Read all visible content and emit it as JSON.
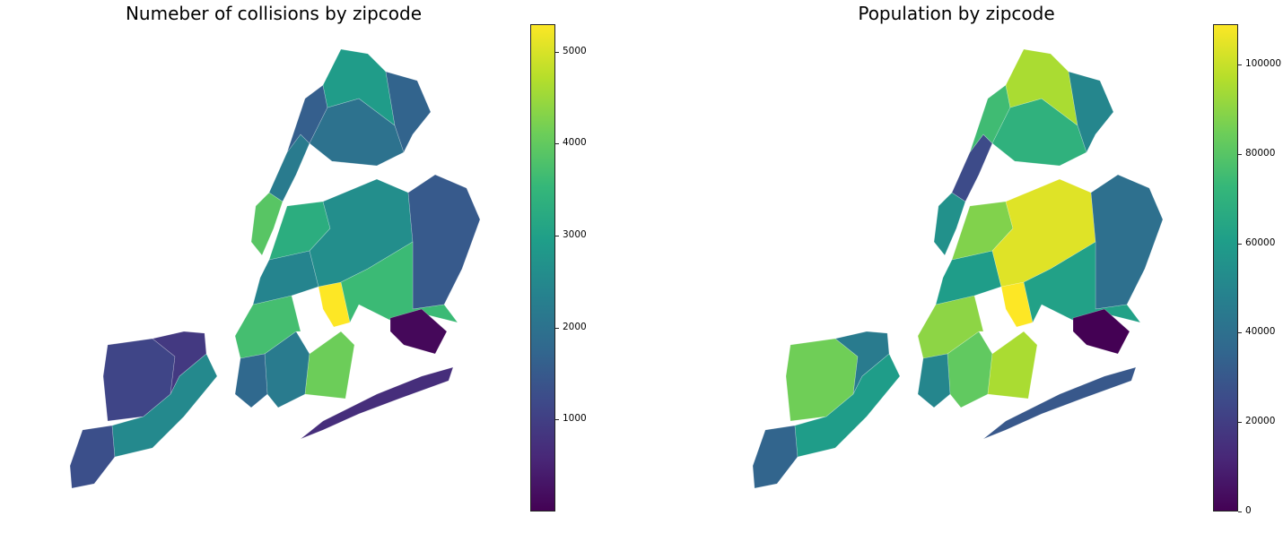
{
  "colors": {
    "colormap": "viridis",
    "water": "#ffffff"
  },
  "chart_data": [
    {
      "type": "choropleth",
      "title": "Numeber of collisions by zipcode",
      "colorbar": {
        "min": 0,
        "max": 5300,
        "ticks": [
          1000,
          2000,
          3000,
          4000,
          5000
        ]
      },
      "regions": [
        {
          "zone": "staten-island-south",
          "value": 1300
        },
        {
          "zone": "staten-island-mid",
          "value": 1100
        },
        {
          "zone": "staten-island-north",
          "value": 900
        },
        {
          "zone": "staten-island-east",
          "value": 2500
        },
        {
          "zone": "brooklyn-south",
          "value": 2200
        },
        {
          "zone": "brooklyn-central",
          "value": 3700
        },
        {
          "zone": "brooklyn-flatbush",
          "value": 5300
        },
        {
          "zone": "brooklyn-east",
          "value": 4100
        },
        {
          "zone": "brooklyn-north",
          "value": 2400
        },
        {
          "zone": "brooklyn-coney-island",
          "value": 1800
        },
        {
          "zone": "queens-west",
          "value": 3300
        },
        {
          "zone": "queens-central",
          "value": 2600
        },
        {
          "zone": "queens-east",
          "value": 1500
        },
        {
          "zone": "queens-south",
          "value": 3600
        },
        {
          "zone": "queens-rockaway",
          "value": 700
        },
        {
          "zone": "jfk-airport",
          "value": 100
        },
        {
          "zone": "manhattan-lower",
          "value": 3900
        },
        {
          "zone": "manhattan-mid",
          "value": 2200
        },
        {
          "zone": "manhattan-upper",
          "value": 1600
        },
        {
          "zone": "bronx-south",
          "value": 2000
        },
        {
          "zone": "bronx-north",
          "value": 2900
        },
        {
          "zone": "bronx-east",
          "value": 1700
        }
      ]
    },
    {
      "type": "choropleth",
      "title": "Population by zipcode",
      "colorbar": {
        "min": 0,
        "max": 109000,
        "ticks": [
          0,
          20000,
          40000,
          60000,
          80000,
          100000
        ]
      },
      "regions": [
        {
          "zone": "staten-island-south",
          "value": 35000
        },
        {
          "zone": "staten-island-mid",
          "value": 85000
        },
        {
          "zone": "staten-island-north",
          "value": 45000
        },
        {
          "zone": "staten-island-east",
          "value": 60000
        },
        {
          "zone": "brooklyn-south",
          "value": 82000
        },
        {
          "zone": "brooklyn-central",
          "value": 90000
        },
        {
          "zone": "brooklyn-flatbush",
          "value": 109000
        },
        {
          "zone": "brooklyn-east",
          "value": 95000
        },
        {
          "zone": "brooklyn-north",
          "value": 60000
        },
        {
          "zone": "brooklyn-coney-island",
          "value": 50000
        },
        {
          "zone": "queens-west",
          "value": 88000
        },
        {
          "zone": "queens-central",
          "value": 104000
        },
        {
          "zone": "queens-east",
          "value": 40000
        },
        {
          "zone": "queens-south",
          "value": 62000
        },
        {
          "zone": "queens-rockaway",
          "value": 30000
        },
        {
          "zone": "jfk-airport",
          "value": 0
        },
        {
          "zone": "manhattan-lower",
          "value": 55000
        },
        {
          "zone": "manhattan-mid",
          "value": 25000
        },
        {
          "zone": "manhattan-upper",
          "value": 75000
        },
        {
          "zone": "bronx-south",
          "value": 70000
        },
        {
          "zone": "bronx-north",
          "value": 95000
        },
        {
          "zone": "bronx-east",
          "value": 50000
        }
      ]
    }
  ]
}
